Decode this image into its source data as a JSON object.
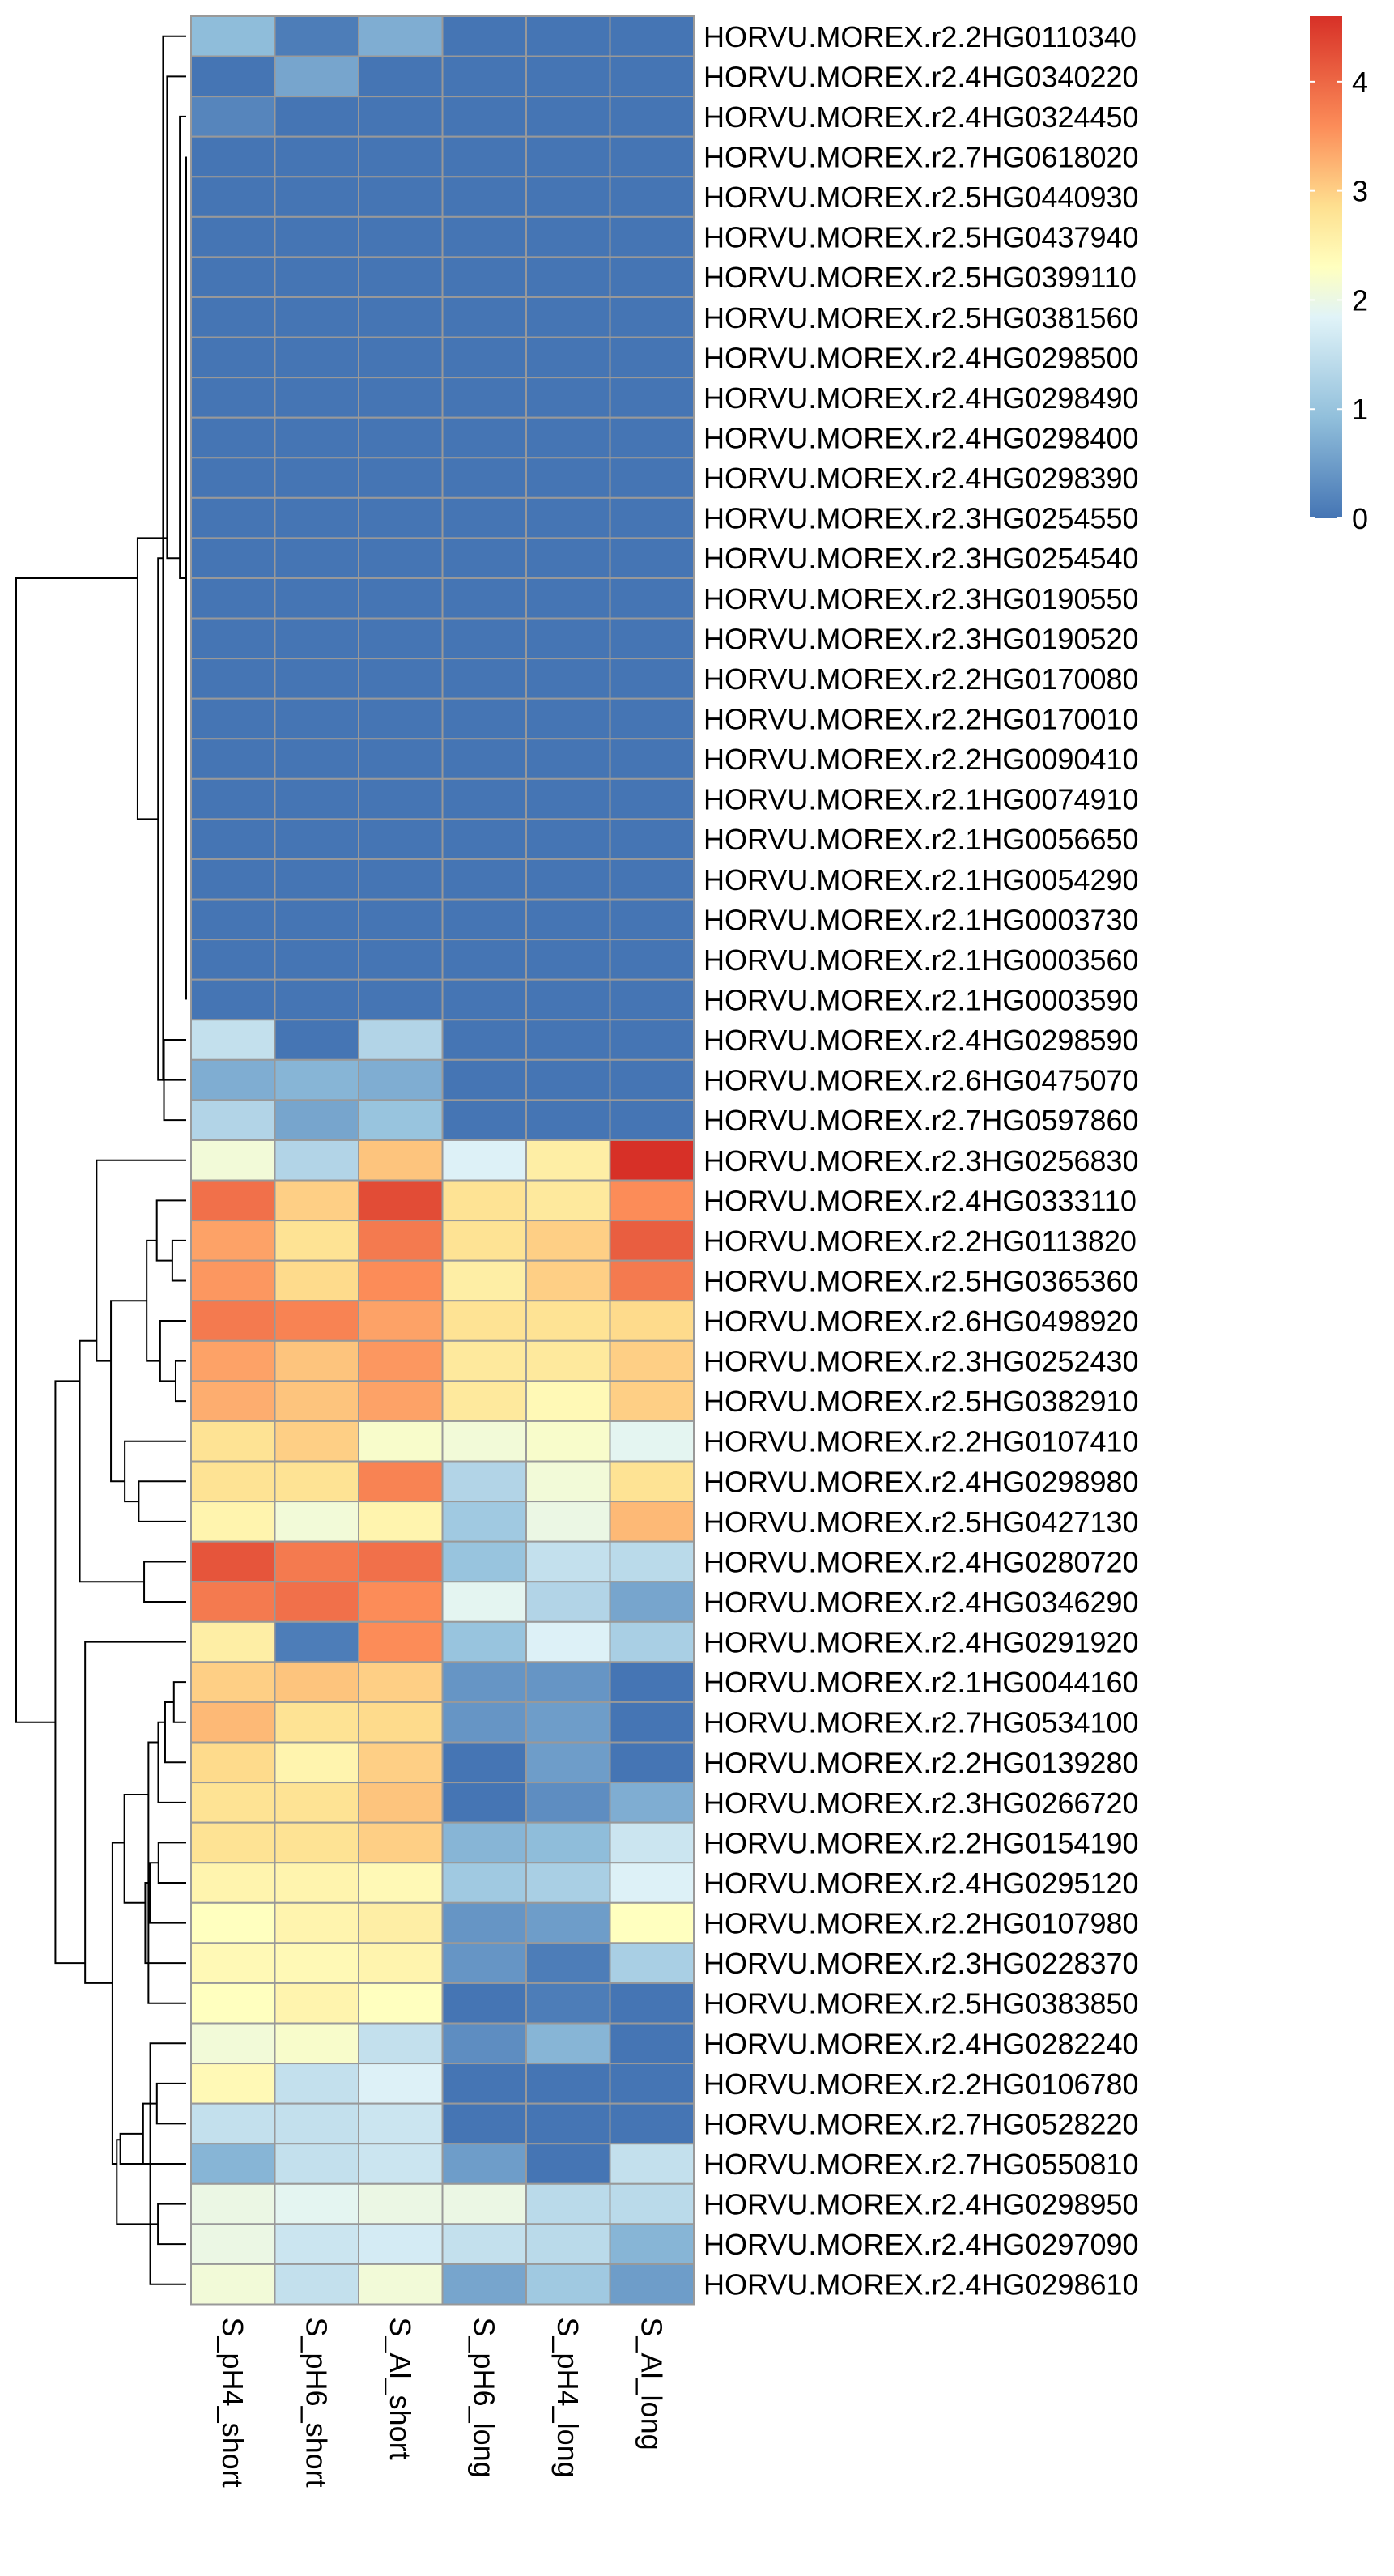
{
  "chart_data": {
    "type": "heatmap",
    "columns": [
      "S_pH4_short",
      "S_pH6_short",
      "S_Al_short",
      "S_pH6_long",
      "S_pH4_long",
      "S_Al_long"
    ],
    "rows": [
      "HORVU.MOREX.r2.2HG0110340",
      "HORVU.MOREX.r2.4HG0340220",
      "HORVU.MOREX.r2.4HG0324450",
      "HORVU.MOREX.r2.7HG0618020",
      "HORVU.MOREX.r2.5HG0440930",
      "HORVU.MOREX.r2.5HG0437940",
      "HORVU.MOREX.r2.5HG0399110",
      "HORVU.MOREX.r2.5HG0381560",
      "HORVU.MOREX.r2.4HG0298500",
      "HORVU.MOREX.r2.4HG0298490",
      "HORVU.MOREX.r2.4HG0298400",
      "HORVU.MOREX.r2.4HG0298390",
      "HORVU.MOREX.r2.3HG0254550",
      "HORVU.MOREX.r2.3HG0254540",
      "HORVU.MOREX.r2.3HG0190550",
      "HORVU.MOREX.r2.3HG0190520",
      "HORVU.MOREX.r2.2HG0170080",
      "HORVU.MOREX.r2.2HG0170010",
      "HORVU.MOREX.r2.2HG0090410",
      "HORVU.MOREX.r2.1HG0074910",
      "HORVU.MOREX.r2.1HG0056650",
      "HORVU.MOREX.r2.1HG0054290",
      "HORVU.MOREX.r2.1HG0003730",
      "HORVU.MOREX.r2.1HG0003560",
      "HORVU.MOREX.r2.1HG0003590",
      "HORVU.MOREX.r2.4HG0298590",
      "HORVU.MOREX.r2.6HG0475070",
      "HORVU.MOREX.r2.7HG0597860",
      "HORVU.MOREX.r2.3HG0256830",
      "HORVU.MOREX.r2.4HG0333110",
      "HORVU.MOREX.r2.2HG0113820",
      "HORVU.MOREX.r2.5HG0365360",
      "HORVU.MOREX.r2.6HG0498920",
      "HORVU.MOREX.r2.3HG0252430",
      "HORVU.MOREX.r2.5HG0382910",
      "HORVU.MOREX.r2.2HG0107410",
      "HORVU.MOREX.r2.4HG0298980",
      "HORVU.MOREX.r2.5HG0427130",
      "HORVU.MOREX.r2.4HG0280720",
      "HORVU.MOREX.r2.4HG0346290",
      "HORVU.MOREX.r2.4HG0291920",
      "HORVU.MOREX.r2.1HG0044160",
      "HORVU.MOREX.r2.7HG0534100",
      "HORVU.MOREX.r2.2HG0139280",
      "HORVU.MOREX.r2.3HG0266720",
      "HORVU.MOREX.r2.2HG0154190",
      "HORVU.MOREX.r2.4HG0295120",
      "HORVU.MOREX.r2.2HG0107980",
      "HORVU.MOREX.r2.3HG0228370",
      "HORVU.MOREX.r2.5HG0383850",
      "HORVU.MOREX.r2.4HG0282240",
      "HORVU.MOREX.r2.2HG0106780",
      "HORVU.MOREX.r2.7HG0528220",
      "HORVU.MOREX.r2.7HG0550810",
      "HORVU.MOREX.r2.4HG0298950",
      "HORVU.MOREX.r2.4HG0297090",
      "HORVU.MOREX.r2.4HG0298610"
    ],
    "values": [
      [
        0.9,
        0.1,
        0.7,
        0,
        0,
        0
      ],
      [
        0,
        0.6,
        0,
        0,
        0,
        0
      ],
      [
        0.2,
        0,
        0,
        0,
        0,
        0
      ],
      [
        0,
        0,
        0,
        0,
        0,
        0
      ],
      [
        0,
        0,
        0,
        0,
        0,
        0
      ],
      [
        0,
        0,
        0,
        0,
        0,
        0
      ],
      [
        0,
        0,
        0,
        0,
        0,
        0
      ],
      [
        0,
        0,
        0,
        0,
        0,
        0
      ],
      [
        0,
        0,
        0,
        0,
        0,
        0
      ],
      [
        0,
        0,
        0,
        0,
        0,
        0
      ],
      [
        0,
        0,
        0,
        0,
        0,
        0
      ],
      [
        0,
        0,
        0,
        0,
        0,
        0
      ],
      [
        0,
        0,
        0,
        0,
        0,
        0
      ],
      [
        0,
        0,
        0,
        0,
        0,
        0
      ],
      [
        0,
        0,
        0,
        0,
        0,
        0
      ],
      [
        0,
        0,
        0,
        0,
        0,
        0
      ],
      [
        0,
        0,
        0,
        0,
        0,
        0
      ],
      [
        0,
        0,
        0,
        0,
        0,
        0
      ],
      [
        0,
        0,
        0,
        0,
        0,
        0
      ],
      [
        0,
        0,
        0,
        0,
        0,
        0
      ],
      [
        0,
        0,
        0,
        0,
        0,
        0
      ],
      [
        0,
        0,
        0,
        0,
        0,
        0
      ],
      [
        0,
        0,
        0,
        0,
        0,
        0
      ],
      [
        0,
        0,
        0,
        0,
        0,
        0
      ],
      [
        0,
        0,
        0,
        0,
        0,
        0
      ],
      [
        1.5,
        0,
        1.3,
        0,
        0,
        0
      ],
      [
        0.7,
        0.8,
        0.7,
        0,
        0,
        0
      ],
      [
        1.3,
        0.6,
        1.0,
        0,
        0,
        0
      ],
      [
        2.1,
        1.3,
        3.1,
        1.8,
        2.6,
        4.6
      ],
      [
        3.9,
        3.0,
        4.3,
        2.8,
        2.7,
        3.6
      ],
      [
        3.4,
        2.8,
        3.8,
        2.8,
        3.0,
        4.1
      ],
      [
        3.5,
        2.9,
        3.6,
        2.6,
        3.0,
        3.8
      ],
      [
        3.8,
        3.7,
        3.4,
        2.8,
        2.8,
        2.9
      ],
      [
        3.4,
        3.1,
        3.5,
        2.7,
        2.7,
        3.0
      ],
      [
        3.3,
        3.1,
        3.4,
        2.7,
        2.4,
        3.0
      ],
      [
        2.8,
        3.0,
        2.2,
        2.1,
        2.2,
        1.9
      ],
      [
        2.8,
        2.8,
        3.7,
        1.3,
        2.1,
        2.8
      ],
      [
        2.5,
        2.1,
        2.5,
        1.1,
        2.0,
        3.2
      ],
      [
        4.2,
        3.8,
        3.9,
        1.0,
        1.5,
        1.4
      ],
      [
        3.8,
        3.9,
        3.6,
        1.9,
        1.3,
        0.6
      ],
      [
        2.6,
        0.1,
        3.6,
        1.0,
        1.8,
        1.2
      ],
      [
        3.0,
        3.1,
        3.0,
        0.4,
        0.4,
        0
      ],
      [
        3.2,
        2.8,
        2.9,
        0.4,
        0.5,
        0
      ],
      [
        2.9,
        2.5,
        3.0,
        0,
        0.5,
        0
      ],
      [
        2.8,
        2.8,
        3.1,
        0,
        0.3,
        0.7
      ],
      [
        2.8,
        2.8,
        3.0,
        0.8,
        0.9,
        1.6
      ],
      [
        2.5,
        2.5,
        2.4,
        1.1,
        1.2,
        1.8
      ],
      [
        2.3,
        2.5,
        2.6,
        0.4,
        0.5,
        2.3
      ],
      [
        2.4,
        2.4,
        2.5,
        0.4,
        0.1,
        1.2
      ],
      [
        2.3,
        2.5,
        2.3,
        0,
        0.1,
        0
      ],
      [
        2.1,
        2.2,
        1.5,
        0.3,
        0.8,
        0
      ],
      [
        2.4,
        1.5,
        1.8,
        0,
        0,
        0
      ],
      [
        1.5,
        1.5,
        1.6,
        0,
        0,
        0
      ],
      [
        0.8,
        1.5,
        1.6,
        0.5,
        0,
        1.5
      ],
      [
        2.0,
        1.9,
        2.0,
        2.0,
        1.4,
        1.4
      ],
      [
        2.0,
        1.6,
        1.7,
        1.5,
        1.4,
        0.8
      ],
      [
        2.1,
        1.5,
        2.1,
        0.6,
        1.1,
        0.5
      ]
    ],
    "color_scale": {
      "low": "#4575B4",
      "mid": "#FFFFBF",
      "high": "#D73027",
      "range": [
        0,
        4.6
      ]
    },
    "colorbar_ticks": [
      "0",
      "1",
      "2",
      "3",
      "4"
    ],
    "cell_border_color": "#999999",
    "legend_position": "top-right",
    "dendrogram": "rows"
  }
}
